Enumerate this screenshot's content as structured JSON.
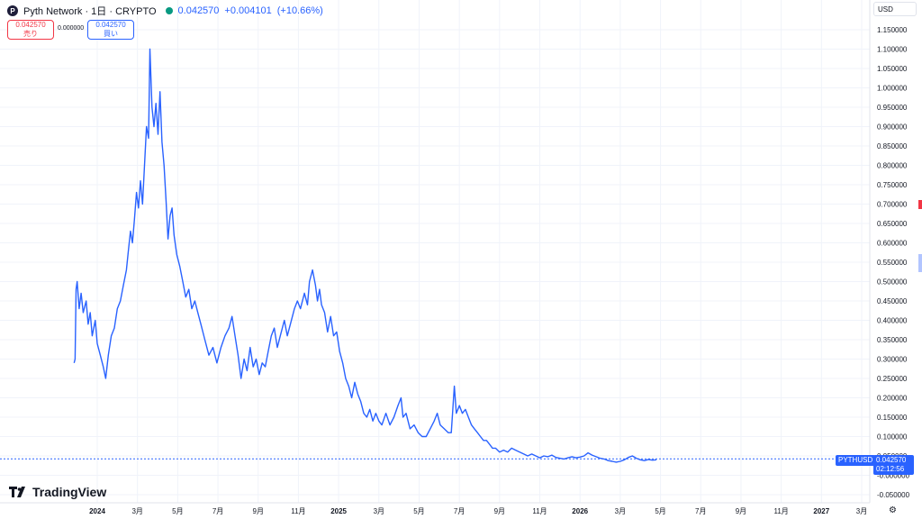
{
  "header": {
    "title": "Pyth Network · 1日 · CRYPTO",
    "price": "0.042570",
    "change": "+0.004101",
    "change_pct": "(+10.66%)"
  },
  "trade": {
    "sell_price": "0.042570",
    "sell_label": "売り",
    "spread": "0.000000",
    "buy_price": "0.042570",
    "buy_label": "買い"
  },
  "currency": "USD",
  "symbol_badge": "PYTHUSD",
  "price_badge": {
    "price": "0.042570",
    "countdown": "02:12:56"
  },
  "brand": "TradingView",
  "colors": {
    "line": "#2962ff",
    "grid": "#f0f3fa",
    "up": "#089981",
    "down": "#f23645"
  },
  "chart_data": {
    "type": "line",
    "title": "",
    "xlabel": "",
    "ylabel": "",
    "ylim": [
      -0.06,
      1.17
    ],
    "y_ticks": [
      "1.150000",
      "1.100000",
      "1.050000",
      "1.000000",
      "0.950000",
      "0.900000",
      "0.850000",
      "0.800000",
      "0.750000",
      "0.700000",
      "0.650000",
      "0.600000",
      "0.550000",
      "0.500000",
      "0.450000",
      "0.400000",
      "0.350000",
      "0.300000",
      "0.250000",
      "0.200000",
      "0.150000",
      "0.100000",
      "0.050000",
      "-0.000000",
      "-0.050000"
    ],
    "x_ticks": [
      {
        "t": 0,
        "label": "2024"
      },
      {
        "t": 2,
        "label": "3月"
      },
      {
        "t": 4,
        "label": "5月"
      },
      {
        "t": 6,
        "label": "7月"
      },
      {
        "t": 8,
        "label": "9月"
      },
      {
        "t": 10,
        "label": "11月"
      },
      {
        "t": 12,
        "label": "2025"
      },
      {
        "t": 14,
        "label": "3月"
      },
      {
        "t": 16,
        "label": "5月"
      },
      {
        "t": 18,
        "label": "7月"
      },
      {
        "t": 20,
        "label": "9月"
      },
      {
        "t": 22,
        "label": "11月"
      },
      {
        "t": 24,
        "label": "2026"
      },
      {
        "t": 26,
        "label": "3月"
      },
      {
        "t": 28,
        "label": "5月"
      },
      {
        "t": 30,
        "label": "7月"
      },
      {
        "t": 32,
        "label": "9月"
      },
      {
        "t": 34,
        "label": "11月"
      },
      {
        "t": 36,
        "label": "2027"
      },
      {
        "t": 38,
        "label": "3月"
      }
    ],
    "xlim": [
      -1.2,
      39.6
    ],
    "last_value": 0.04257,
    "series": [
      {
        "values": [
          [
            -1.15,
            0.29
          ],
          [
            -1.1,
            0.3
          ],
          [
            -1.05,
            0.48
          ],
          [
            -1.0,
            0.5
          ],
          [
            -0.9,
            0.43
          ],
          [
            -0.8,
            0.47
          ],
          [
            -0.7,
            0.42
          ],
          [
            -0.55,
            0.45
          ],
          [
            -0.45,
            0.39
          ],
          [
            -0.35,
            0.42
          ],
          [
            -0.25,
            0.36
          ],
          [
            -0.1,
            0.4
          ],
          [
            0.0,
            0.34
          ],
          [
            0.15,
            0.31
          ],
          [
            0.3,
            0.28
          ],
          [
            0.42,
            0.25
          ],
          [
            0.55,
            0.31
          ],
          [
            0.7,
            0.36
          ],
          [
            0.85,
            0.38
          ],
          [
            1.0,
            0.43
          ],
          [
            1.15,
            0.45
          ],
          [
            1.3,
            0.49
          ],
          [
            1.45,
            0.53
          ],
          [
            1.55,
            0.58
          ],
          [
            1.65,
            0.63
          ],
          [
            1.75,
            0.6
          ],
          [
            1.85,
            0.66
          ],
          [
            1.95,
            0.73
          ],
          [
            2.05,
            0.69
          ],
          [
            2.15,
            0.76
          ],
          [
            2.25,
            0.7
          ],
          [
            2.35,
            0.8
          ],
          [
            2.45,
            0.9
          ],
          [
            2.55,
            0.87
          ],
          [
            2.62,
            1.1
          ],
          [
            2.72,
            0.95
          ],
          [
            2.82,
            0.9
          ],
          [
            2.92,
            0.96
          ],
          [
            3.02,
            0.88
          ],
          [
            3.12,
            0.99
          ],
          [
            3.22,
            0.86
          ],
          [
            3.32,
            0.8
          ],
          [
            3.42,
            0.71
          ],
          [
            3.52,
            0.61
          ],
          [
            3.62,
            0.67
          ],
          [
            3.72,
            0.69
          ],
          [
            3.82,
            0.62
          ],
          [
            3.95,
            0.57
          ],
          [
            4.1,
            0.54
          ],
          [
            4.25,
            0.5
          ],
          [
            4.4,
            0.46
          ],
          [
            4.55,
            0.48
          ],
          [
            4.7,
            0.43
          ],
          [
            4.85,
            0.45
          ],
          [
            5.0,
            0.42
          ],
          [
            5.15,
            0.39
          ],
          [
            5.35,
            0.35
          ],
          [
            5.55,
            0.31
          ],
          [
            5.75,
            0.33
          ],
          [
            5.95,
            0.29
          ],
          [
            6.15,
            0.33
          ],
          [
            6.35,
            0.36
          ],
          [
            6.55,
            0.38
          ],
          [
            6.7,
            0.41
          ],
          [
            6.85,
            0.36
          ],
          [
            7.0,
            0.31
          ],
          [
            7.15,
            0.25
          ],
          [
            7.3,
            0.3
          ],
          [
            7.45,
            0.27
          ],
          [
            7.6,
            0.33
          ],
          [
            7.75,
            0.28
          ],
          [
            7.9,
            0.3
          ],
          [
            8.05,
            0.26
          ],
          [
            8.2,
            0.29
          ],
          [
            8.35,
            0.28
          ],
          [
            8.5,
            0.32
          ],
          [
            8.65,
            0.36
          ],
          [
            8.8,
            0.38
          ],
          [
            8.95,
            0.33
          ],
          [
            9.1,
            0.36
          ],
          [
            9.3,
            0.4
          ],
          [
            9.45,
            0.36
          ],
          [
            9.6,
            0.39
          ],
          [
            9.8,
            0.43
          ],
          [
            9.95,
            0.45
          ],
          [
            10.1,
            0.43
          ],
          [
            10.3,
            0.47
          ],
          [
            10.45,
            0.44
          ],
          [
            10.55,
            0.5
          ],
          [
            10.7,
            0.53
          ],
          [
            10.85,
            0.49
          ],
          [
            10.95,
            0.45
          ],
          [
            11.05,
            0.48
          ],
          [
            11.15,
            0.44
          ],
          [
            11.3,
            0.42
          ],
          [
            11.45,
            0.37
          ],
          [
            11.6,
            0.41
          ],
          [
            11.75,
            0.36
          ],
          [
            11.9,
            0.37
          ],
          [
            12.05,
            0.32
          ],
          [
            12.2,
            0.29
          ],
          [
            12.35,
            0.25
          ],
          [
            12.5,
            0.23
          ],
          [
            12.65,
            0.2
          ],
          [
            12.8,
            0.24
          ],
          [
            12.95,
            0.21
          ],
          [
            13.1,
            0.19
          ],
          [
            13.25,
            0.16
          ],
          [
            13.4,
            0.15
          ],
          [
            13.55,
            0.17
          ],
          [
            13.7,
            0.14
          ],
          [
            13.85,
            0.16
          ],
          [
            14.0,
            0.14
          ],
          [
            14.15,
            0.13
          ],
          [
            14.35,
            0.16
          ],
          [
            14.55,
            0.13
          ],
          [
            14.75,
            0.15
          ],
          [
            14.95,
            0.18
          ],
          [
            15.1,
            0.2
          ],
          [
            15.2,
            0.15
          ],
          [
            15.35,
            0.16
          ],
          [
            15.55,
            0.12
          ],
          [
            15.75,
            0.13
          ],
          [
            15.95,
            0.11
          ],
          [
            16.15,
            0.1
          ],
          [
            16.35,
            0.1
          ],
          [
            16.55,
            0.12
          ],
          [
            16.75,
            0.14
          ],
          [
            16.9,
            0.16
          ],
          [
            17.05,
            0.13
          ],
          [
            17.25,
            0.12
          ],
          [
            17.45,
            0.11
          ],
          [
            17.6,
            0.11
          ],
          [
            17.75,
            0.23
          ],
          [
            17.85,
            0.16
          ],
          [
            18.0,
            0.18
          ],
          [
            18.15,
            0.16
          ],
          [
            18.3,
            0.17
          ],
          [
            18.45,
            0.15
          ],
          [
            18.6,
            0.13
          ],
          [
            18.75,
            0.12
          ],
          [
            18.9,
            0.11
          ],
          [
            19.05,
            0.1
          ],
          [
            19.2,
            0.09
          ],
          [
            19.35,
            0.09
          ],
          [
            19.5,
            0.08
          ],
          [
            19.65,
            0.07
          ],
          [
            19.8,
            0.07
          ],
          [
            20.0,
            0.06
          ],
          [
            20.2,
            0.065
          ],
          [
            20.4,
            0.06
          ],
          [
            20.6,
            0.07
          ],
          [
            20.8,
            0.065
          ],
          [
            21.0,
            0.06
          ],
          [
            21.2,
            0.055
          ],
          [
            21.4,
            0.05
          ],
          [
            21.6,
            0.055
          ],
          [
            21.8,
            0.05
          ],
          [
            22.0,
            0.045
          ],
          [
            22.2,
            0.05
          ],
          [
            22.4,
            0.048
          ],
          [
            22.6,
            0.052
          ],
          [
            22.8,
            0.046
          ],
          [
            23.0,
            0.044
          ],
          [
            23.2,
            0.042
          ],
          [
            23.4,
            0.045
          ],
          [
            23.6,
            0.048
          ],
          [
            23.8,
            0.045
          ],
          [
            24.0,
            0.047
          ],
          [
            24.2,
            0.05
          ],
          [
            24.4,
            0.058
          ],
          [
            24.6,
            0.052
          ],
          [
            24.8,
            0.048
          ],
          [
            25.0,
            0.044
          ],
          [
            25.2,
            0.042
          ],
          [
            25.4,
            0.038
          ],
          [
            25.6,
            0.036
          ],
          [
            25.8,
            0.034
          ],
          [
            26.0,
            0.036
          ],
          [
            26.2,
            0.04
          ],
          [
            26.4,
            0.046
          ],
          [
            26.6,
            0.05
          ],
          [
            26.8,
            0.044
          ],
          [
            27.0,
            0.04
          ],
          [
            27.2,
            0.038
          ],
          [
            27.4,
            0.041
          ],
          [
            27.6,
            0.039
          ],
          [
            27.8,
            0.04
          ]
        ]
      }
    ]
  }
}
